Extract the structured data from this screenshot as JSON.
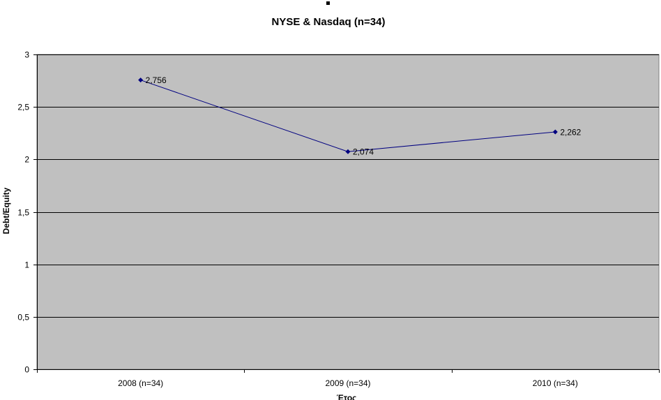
{
  "colors": {
    "plot_background": "#c0c0c0",
    "series_line": "#000080",
    "gridline": "#000000"
  },
  "chart_data": {
    "type": "line",
    "title": "NYSE & Nasdaq (n=34)",
    "xlabel": "Έτος",
    "ylabel": "Debt/Equity",
    "categories": [
      "2008 (n=34)",
      "2009 (n=34)",
      "2010 (n=34)"
    ],
    "series": [
      {
        "values": [
          2.756,
          2.074,
          2.262
        ],
        "value_labels": [
          "2,756",
          "2,074",
          "2,262"
        ],
        "marker": "diamond"
      }
    ],
    "ylim": [
      0,
      3
    ],
    "yticks": [
      0,
      0.5,
      1,
      1.5,
      2,
      2.5,
      3
    ],
    "ytick_labels": [
      "0",
      "0,5",
      "1",
      "1,5",
      "2",
      "2,5",
      "3"
    ],
    "grid": true,
    "legend": "none"
  }
}
